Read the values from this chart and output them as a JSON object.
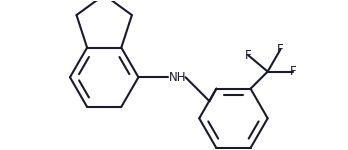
{
  "bg_color": "#ffffff",
  "line_color": "#1a1a2e",
  "line_width": 1.5,
  "text_color": "#1a1a2e",
  "font_size": 8.5,
  "NH_label": "NH",
  "F_labels": [
    "F",
    "F",
    "F"
  ],
  "figsize": [
    3.48,
    1.5
  ],
  "dpi": 100
}
